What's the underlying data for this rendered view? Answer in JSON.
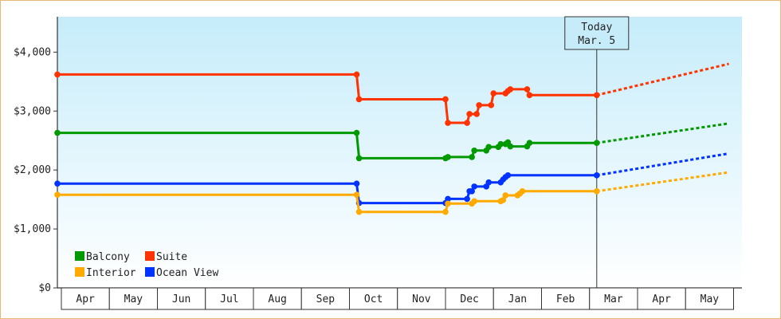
{
  "chart_data": {
    "type": "line",
    "title": "",
    "xlabel": "",
    "ylabel": "",
    "ylim": [
      0,
      4600
    ],
    "y_ticks": [
      {
        "value": 0,
        "label": "$0"
      },
      {
        "value": 1000,
        "label": "$1,000"
      },
      {
        "value": 2000,
        "label": "$2,000"
      },
      {
        "value": 3000,
        "label": "$3,000"
      },
      {
        "value": 4000,
        "label": "$4,000"
      }
    ],
    "months": [
      "Apr",
      "May",
      "Jun",
      "Jul",
      "Aug",
      "Sep",
      "Oct",
      "Nov",
      "Dec",
      "Jan",
      "Feb",
      "Mar",
      "Apr",
      "May"
    ],
    "x_range_months": [
      -0.05,
      13.9
    ],
    "today": {
      "line1": "Today",
      "line2": "Mar. 5",
      "x": 11.15
    },
    "legend": {
      "position": "bottom-left"
    },
    "series": [
      {
        "name": "Suite",
        "color": "#ff3300",
        "points": [
          [
            -0.05,
            3620
          ],
          [
            6.15,
            3620
          ],
          [
            6.2,
            3200
          ],
          [
            8.0,
            3200
          ],
          [
            8.05,
            2800
          ],
          [
            8.45,
            2800
          ],
          [
            8.5,
            2950
          ],
          [
            8.65,
            2950
          ],
          [
            8.7,
            3100
          ],
          [
            8.95,
            3100
          ],
          [
            9.0,
            3300
          ],
          [
            9.25,
            3300
          ],
          [
            9.3,
            3340
          ],
          [
            9.35,
            3370
          ],
          [
            9.7,
            3370
          ],
          [
            9.75,
            3270
          ],
          [
            11.15,
            3270
          ]
        ],
        "forecast": [
          [
            11.15,
            3270
          ],
          [
            13.9,
            3800
          ]
        ]
      },
      {
        "name": "Balcony",
        "color": "#009900",
        "points": [
          [
            -0.05,
            2630
          ],
          [
            6.15,
            2630
          ],
          [
            6.2,
            2200
          ],
          [
            8.0,
            2200
          ],
          [
            8.05,
            2220
          ],
          [
            8.55,
            2220
          ],
          [
            8.6,
            2330
          ],
          [
            8.85,
            2330
          ],
          [
            8.9,
            2390
          ],
          [
            9.1,
            2390
          ],
          [
            9.15,
            2440
          ],
          [
            9.25,
            2440
          ],
          [
            9.3,
            2470
          ],
          [
            9.35,
            2400
          ],
          [
            9.7,
            2400
          ],
          [
            9.75,
            2460
          ],
          [
            11.15,
            2460
          ]
        ],
        "forecast": [
          [
            11.15,
            2460
          ],
          [
            13.9,
            2790
          ]
        ]
      },
      {
        "name": "Ocean View",
        "color": "#0033ff",
        "points": [
          [
            -0.05,
            1770
          ],
          [
            6.15,
            1770
          ],
          [
            6.2,
            1440
          ],
          [
            8.0,
            1440
          ],
          [
            8.05,
            1510
          ],
          [
            8.45,
            1510
          ],
          [
            8.5,
            1640
          ],
          [
            8.55,
            1640
          ],
          [
            8.6,
            1720
          ],
          [
            8.85,
            1720
          ],
          [
            8.9,
            1790
          ],
          [
            9.15,
            1790
          ],
          [
            9.2,
            1840
          ],
          [
            9.25,
            1880
          ],
          [
            9.3,
            1910
          ],
          [
            11.15,
            1910
          ]
        ],
        "forecast": [
          [
            11.15,
            1910
          ],
          [
            13.9,
            2280
          ]
        ]
      },
      {
        "name": "Interior",
        "color": "#ffaa00",
        "points": [
          [
            -0.05,
            1580
          ],
          [
            6.15,
            1580
          ],
          [
            6.2,
            1290
          ],
          [
            8.0,
            1290
          ],
          [
            8.05,
            1430
          ],
          [
            8.55,
            1430
          ],
          [
            8.6,
            1470
          ],
          [
            9.15,
            1470
          ],
          [
            9.2,
            1490
          ],
          [
            9.25,
            1570
          ],
          [
            9.5,
            1570
          ],
          [
            9.55,
            1600
          ],
          [
            9.6,
            1640
          ],
          [
            11.15,
            1640
          ]
        ],
        "forecast": [
          [
            11.15,
            1640
          ],
          [
            13.9,
            1960
          ]
        ]
      }
    ],
    "legend_order": [
      "Balcony",
      "Suite",
      "Interior",
      "Ocean View"
    ]
  }
}
